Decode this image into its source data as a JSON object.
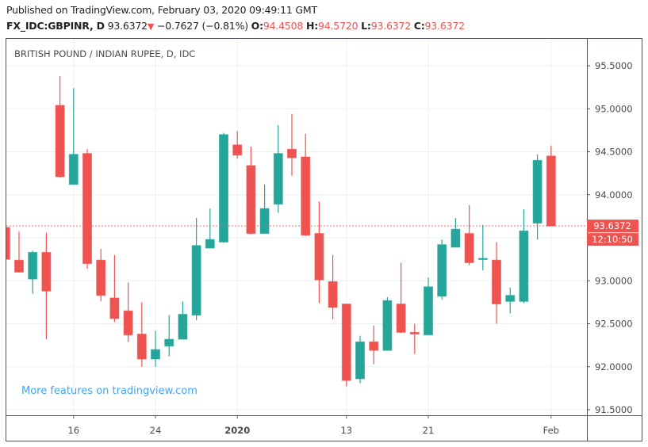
{
  "header": {
    "published": "Published on TradingView.com, February 03, 2020 09:49:11 GMT",
    "symbol": "FX_IDC:GBPINR, D",
    "last": "93.6372",
    "change": "−0.7627 (−0.81%)",
    "o_label": "O:",
    "o": "94.4508",
    "h_label": "H:",
    "h": "94.5720",
    "l_label": "L:",
    "l": "93.6372",
    "c_label": "C:",
    "c": "93.6372"
  },
  "promo": "More features on tradingview.com",
  "colors": {
    "up": "#26a69a",
    "down": "#ef5350",
    "grid": "#e9f0f5",
    "border": "#50535e",
    "link": "#42a5f5"
  },
  "chart_data": {
    "type": "candlestick",
    "title": "BRITISH POUND / INDIAN RUPEE, D, IDC",
    "ylim": [
      91.45,
      95.8
    ],
    "yticks": [
      "95.5000",
      "95.0000",
      "94.5000",
      "94.0000",
      "93.5000",
      "93.0000",
      "92.5000",
      "92.0000",
      "91.5000"
    ],
    "ytick_values": [
      95.5,
      95.0,
      94.5,
      94.0,
      93.5,
      93.0,
      92.5,
      92.0,
      91.5
    ],
    "last_price_label": "93.6372",
    "last_price": 93.6372,
    "countdown_label": "12:10:50",
    "xticks": [
      {
        "label": "16",
        "date": "2019-12-16"
      },
      {
        "label": "24",
        "date": "2019-12-24"
      },
      {
        "label": "2020",
        "date": "2020-01-01"
      },
      {
        "label": "13",
        "date": "2020-01-13"
      },
      {
        "label": "21",
        "date": "2020-01-21"
      },
      {
        "label": "Feb",
        "date": "2020-02-03"
      }
    ],
    "candles": [
      {
        "date": "2019-12-09",
        "o": 93.62,
        "h": 93.7,
        "l": 93.22,
        "c": 93.25
      },
      {
        "date": "2019-12-10",
        "o": 93.24,
        "h": 93.57,
        "l": 93.1,
        "c": 93.1
      },
      {
        "date": "2019-12-11",
        "o": 93.02,
        "h": 93.35,
        "l": 92.85,
        "c": 93.33
      },
      {
        "date": "2019-12-12",
        "o": 93.33,
        "h": 93.56,
        "l": 92.32,
        "c": 92.88
      },
      {
        "date": "2019-12-13",
        "o": 95.04,
        "h": 95.38,
        "l": 94.2,
        "c": 94.21
      },
      {
        "date": "2019-12-16",
        "o": 94.12,
        "h": 95.24,
        "l": 94.12,
        "c": 94.47
      },
      {
        "date": "2019-12-17",
        "o": 94.48,
        "h": 94.53,
        "l": 93.14,
        "c": 93.2
      },
      {
        "date": "2019-12-18",
        "o": 93.24,
        "h": 93.37,
        "l": 92.76,
        "c": 92.83
      },
      {
        "date": "2019-12-19",
        "o": 92.8,
        "h": 93.3,
        "l": 92.52,
        "c": 92.56
      },
      {
        "date": "2019-12-20",
        "o": 92.65,
        "h": 92.98,
        "l": 92.29,
        "c": 92.37
      },
      {
        "date": "2019-12-23",
        "o": 92.38,
        "h": 92.75,
        "l": 92.0,
        "c": 92.09
      },
      {
        "date": "2019-12-24",
        "o": 92.09,
        "h": 92.42,
        "l": 92.0,
        "c": 92.2
      },
      {
        "date": "2019-12-25",
        "o": 92.24,
        "h": 92.6,
        "l": 92.12,
        "c": 92.32
      },
      {
        "date": "2019-12-26",
        "o": 92.32,
        "h": 92.76,
        "l": 92.32,
        "c": 92.61
      },
      {
        "date": "2019-12-27",
        "o": 92.6,
        "h": 93.73,
        "l": 92.54,
        "c": 93.41
      },
      {
        "date": "2019-12-30",
        "o": 93.38,
        "h": 93.84,
        "l": 93.38,
        "c": 93.48
      },
      {
        "date": "2019-12-31",
        "o": 93.45,
        "h": 94.72,
        "l": 93.44,
        "c": 94.7
      },
      {
        "date": "2020-01-01",
        "o": 94.58,
        "h": 94.74,
        "l": 94.42,
        "c": 94.46
      },
      {
        "date": "2020-01-02",
        "o": 94.34,
        "h": 94.56,
        "l": 93.54,
        "c": 93.55
      },
      {
        "date": "2020-01-03",
        "o": 93.55,
        "h": 94.12,
        "l": 93.55,
        "c": 93.84
      },
      {
        "date": "2020-01-06",
        "o": 93.89,
        "h": 94.81,
        "l": 93.79,
        "c": 94.48
      },
      {
        "date": "2020-01-07",
        "o": 94.53,
        "h": 94.94,
        "l": 94.22,
        "c": 94.43
      },
      {
        "date": "2020-01-08",
        "o": 94.44,
        "h": 94.71,
        "l": 93.52,
        "c": 93.53
      },
      {
        "date": "2020-01-09",
        "o": 93.55,
        "h": 93.92,
        "l": 92.74,
        "c": 93.01
      },
      {
        "date": "2020-01-10",
        "o": 92.99,
        "h": 93.3,
        "l": 92.55,
        "c": 92.69
      },
      {
        "date": "2020-01-13",
        "o": 92.73,
        "h": 92.73,
        "l": 91.77,
        "c": 91.84
      },
      {
        "date": "2020-01-14",
        "o": 91.86,
        "h": 92.36,
        "l": 91.81,
        "c": 92.29
      },
      {
        "date": "2020-01-15",
        "o": 92.29,
        "h": 92.48,
        "l": 92.03,
        "c": 92.19
      },
      {
        "date": "2020-01-16",
        "o": 92.19,
        "h": 92.81,
        "l": 92.19,
        "c": 92.77
      },
      {
        "date": "2020-01-17",
        "o": 92.73,
        "h": 93.21,
        "l": 92.39,
        "c": 92.4
      },
      {
        "date": "2020-01-20",
        "o": 92.4,
        "h": 92.5,
        "l": 92.15,
        "c": 92.38
      },
      {
        "date": "2020-01-21",
        "o": 92.37,
        "h": 93.04,
        "l": 92.37,
        "c": 92.93
      },
      {
        "date": "2020-01-22",
        "o": 92.82,
        "h": 93.48,
        "l": 92.78,
        "c": 93.42
      },
      {
        "date": "2020-01-23",
        "o": 93.39,
        "h": 93.73,
        "l": 93.39,
        "c": 93.6
      },
      {
        "date": "2020-01-24",
        "o": 93.55,
        "h": 93.88,
        "l": 93.18,
        "c": 93.21
      },
      {
        "date": "2020-01-27",
        "o": 93.25,
        "h": 93.65,
        "l": 93.12,
        "c": 93.26
      },
      {
        "date": "2020-01-28",
        "o": 93.24,
        "h": 93.45,
        "l": 92.5,
        "c": 92.73
      },
      {
        "date": "2020-01-29",
        "o": 92.76,
        "h": 92.92,
        "l": 92.62,
        "c": 92.83
      },
      {
        "date": "2020-01-30",
        "o": 92.76,
        "h": 93.83,
        "l": 92.74,
        "c": 93.58
      },
      {
        "date": "2020-01-31",
        "o": 93.67,
        "h": 94.47,
        "l": 93.48,
        "c": 94.4
      },
      {
        "date": "2020-02-03",
        "o": 94.4508,
        "h": 94.572,
        "l": 93.6372,
        "c": 93.6372
      }
    ]
  }
}
